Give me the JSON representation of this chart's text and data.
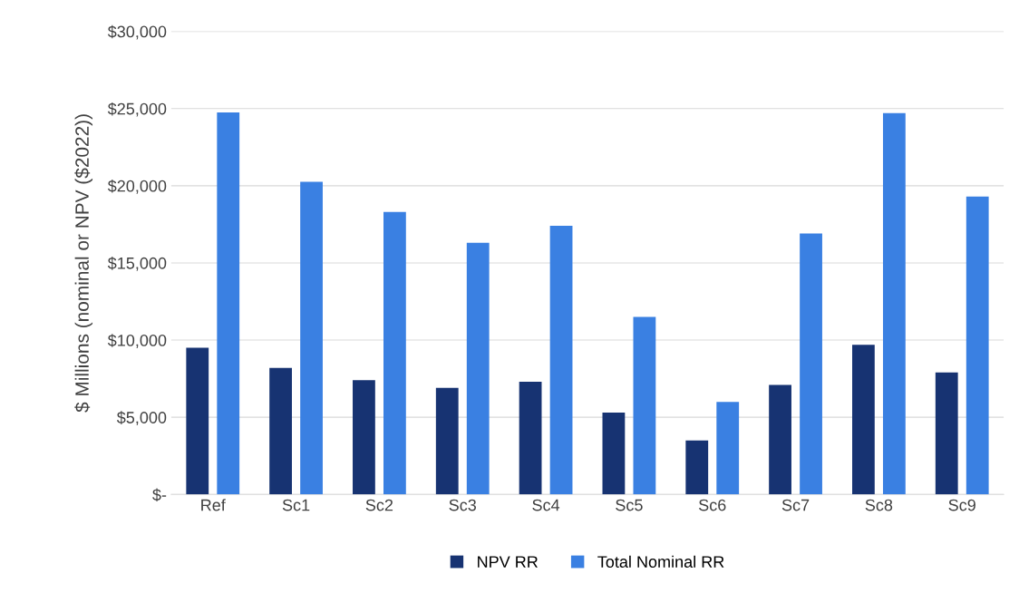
{
  "chart_data": {
    "type": "bar",
    "ylabel": "$ Millions (nominal or NPV ($2022))",
    "categories": [
      "Ref",
      "Sc1",
      "Sc2",
      "Sc3",
      "Sc4",
      "Sc5",
      "Sc6",
      "Sc7",
      "Sc8",
      "Sc9"
    ],
    "series": [
      {
        "name": "NPV RR",
        "color": "#173372",
        "values": [
          9500,
          8200,
          7400,
          6900,
          7300,
          5300,
          3500,
          7100,
          9700,
          7900
        ]
      },
      {
        "name": "Total Nominal RR",
        "color": "#3a80e2",
        "values": [
          24750,
          20250,
          18300,
          16300,
          17400,
          11500,
          6000,
          16900,
          24700,
          19300
        ]
      }
    ],
    "ylim": [
      0,
      30000
    ],
    "yticks": [
      {
        "value": 0,
        "label": "$-"
      },
      {
        "value": 5000,
        "label": "$5,000"
      },
      {
        "value": 10000,
        "label": "$10,000"
      },
      {
        "value": 15000,
        "label": "$15,000"
      },
      {
        "value": 20000,
        "label": "$20,000"
      },
      {
        "value": 25000,
        "label": "$25,000"
      },
      {
        "value": 30000,
        "label": "$30,000"
      }
    ],
    "grid": "y",
    "legend": "bottom"
  }
}
